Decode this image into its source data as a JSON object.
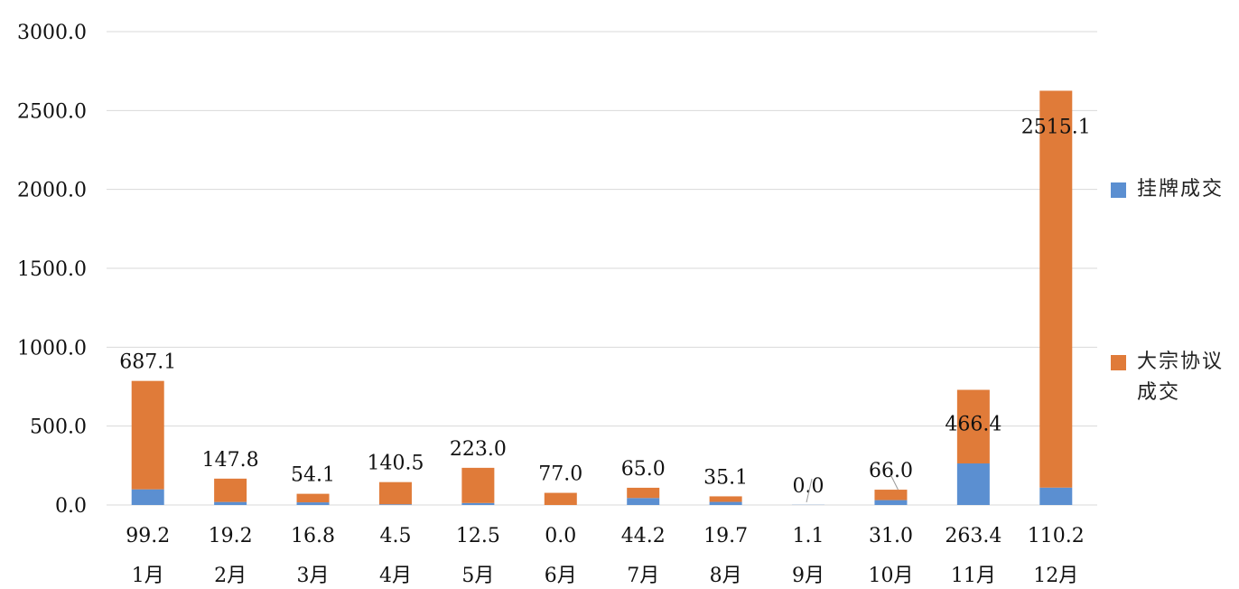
{
  "colors": {
    "listed": "#5b8fd1",
    "block": "#e07b39",
    "grid": "#d9d9d9",
    "text": "#111111"
  },
  "chart_data": {
    "type": "bar",
    "stacked": true,
    "categories": [
      "1月",
      "2月",
      "3月",
      "4月",
      "5月",
      "6月",
      "7月",
      "8月",
      "9月",
      "10月",
      "11月",
      "12月"
    ],
    "series": [
      {
        "name": "挂牌成交",
        "values": [
          99.2,
          19.2,
          16.8,
          4.5,
          12.5,
          0.0,
          44.2,
          19.7,
          1.1,
          31.0,
          263.4,
          110.2
        ],
        "labels": [
          "99.2",
          "19.2",
          "16.8",
          "4.5",
          "12.5",
          "0.0",
          "44.2",
          "19.7",
          "1.1",
          "31.0",
          "263.4",
          "110.2"
        ]
      },
      {
        "name": "大宗协议成交",
        "values": [
          687.1,
          147.8,
          54.1,
          140.5,
          223.0,
          77.0,
          65.0,
          35.1,
          0.0,
          66.0,
          466.4,
          2515.1
        ],
        "labels": [
          "687.1",
          "147.8",
          "54.1",
          "140.5",
          "223.0",
          "77.0",
          "65.0",
          "35.1",
          "0.0",
          "66.0",
          "466.4",
          "2515.1"
        ]
      }
    ],
    "ylim": [
      0,
      3000
    ],
    "yticks": [
      "0.0",
      "500.0",
      "1000.0",
      "1500.0",
      "2000.0",
      "2500.0",
      "3000.0"
    ],
    "grid": true,
    "legend_position": "right",
    "title": "",
    "xlabel": "",
    "ylabel": ""
  }
}
